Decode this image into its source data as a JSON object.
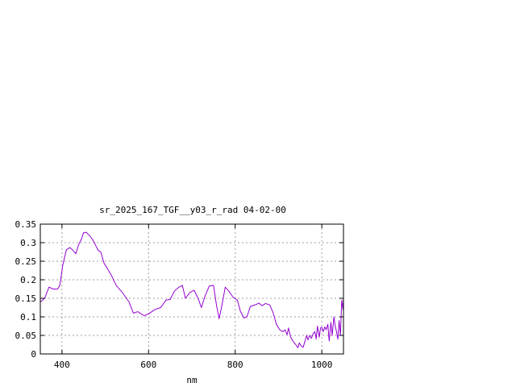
{
  "chart_data": {
    "type": "line",
    "title": "sr_2025_167_TGF__y03_r_rad 04-02-00",
    "xlabel": "nm",
    "ylabel": "",
    "xlim": [
      350,
      1050
    ],
    "ylim": [
      0,
      0.35
    ],
    "x_ticks": [
      400,
      600,
      800,
      1000
    ],
    "x_tick_labels": [
      "400",
      "600",
      "800",
      "1000"
    ],
    "y_ticks": [
      0,
      0.05,
      0.1,
      0.15,
      0.2,
      0.25,
      0.3,
      0.35
    ],
    "y_tick_labels": [
      "0",
      "0.05",
      "0.1",
      "0.15",
      "0.2",
      "0.25",
      "0.3",
      "0.35"
    ],
    "grid": true,
    "series": [
      {
        "color": "#9400d3",
        "points": [
          [
            350,
            0.14
          ],
          [
            360,
            0.15
          ],
          [
            370,
            0.18
          ],
          [
            380,
            0.175
          ],
          [
            390,
            0.175
          ],
          [
            395,
            0.185
          ],
          [
            402,
            0.24
          ],
          [
            410,
            0.28
          ],
          [
            418,
            0.287
          ],
          [
            425,
            0.28
          ],
          [
            432,
            0.27
          ],
          [
            438,
            0.293
          ],
          [
            445,
            0.31
          ],
          [
            450,
            0.327
          ],
          [
            456,
            0.328
          ],
          [
            463,
            0.32
          ],
          [
            470,
            0.31
          ],
          [
            477,
            0.295
          ],
          [
            483,
            0.28
          ],
          [
            490,
            0.274
          ],
          [
            497,
            0.245
          ],
          [
            505,
            0.23
          ],
          [
            515,
            0.21
          ],
          [
            525,
            0.185
          ],
          [
            540,
            0.165
          ],
          [
            555,
            0.14
          ],
          [
            565,
            0.11
          ],
          [
            575,
            0.114
          ],
          [
            590,
            0.103
          ],
          [
            600,
            0.108
          ],
          [
            615,
            0.12
          ],
          [
            628,
            0.125
          ],
          [
            640,
            0.145
          ],
          [
            650,
            0.147
          ],
          [
            660,
            0.17
          ],
          [
            670,
            0.18
          ],
          [
            678,
            0.185
          ],
          [
            685,
            0.15
          ],
          [
            695,
            0.165
          ],
          [
            705,
            0.172
          ],
          [
            715,
            0.148
          ],
          [
            722,
            0.125
          ],
          [
            730,
            0.155
          ],
          [
            740,
            0.183
          ],
          [
            750,
            0.185
          ],
          [
            757,
            0.13
          ],
          [
            763,
            0.095
          ],
          [
            770,
            0.135
          ],
          [
            777,
            0.18
          ],
          [
            785,
            0.17
          ],
          [
            795,
            0.153
          ],
          [
            805,
            0.145
          ],
          [
            812,
            0.115
          ],
          [
            820,
            0.097
          ],
          [
            827,
            0.1
          ],
          [
            835,
            0.128
          ],
          [
            845,
            0.132
          ],
          [
            855,
            0.137
          ],
          [
            862,
            0.13
          ],
          [
            870,
            0.136
          ],
          [
            880,
            0.132
          ],
          [
            888,
            0.11
          ],
          [
            895,
            0.08
          ],
          [
            903,
            0.065
          ],
          [
            910,
            0.06
          ],
          [
            915,
            0.065
          ],
          [
            920,
            0.052
          ],
          [
            923,
            0.07
          ],
          [
            928,
            0.045
          ],
          [
            935,
            0.032
          ],
          [
            940,
            0.025
          ],
          [
            945,
            0.017
          ],
          [
            948,
            0.03
          ],
          [
            952,
            0.022
          ],
          [
            957,
            0.018
          ],
          [
            960,
            0.03
          ],
          [
            965,
            0.05
          ],
          [
            968,
            0.038
          ],
          [
            972,
            0.05
          ],
          [
            976,
            0.042
          ],
          [
            980,
            0.055
          ],
          [
            984,
            0.06
          ],
          [
            987,
            0.04
          ],
          [
            990,
            0.075
          ],
          [
            994,
            0.045
          ],
          [
            997,
            0.07
          ],
          [
            1000,
            0.072
          ],
          [
            1003,
            0.06
          ],
          [
            1007,
            0.073
          ],
          [
            1010,
            0.065
          ],
          [
            1014,
            0.08
          ],
          [
            1017,
            0.035
          ],
          [
            1021,
            0.085
          ],
          [
            1024,
            0.05
          ],
          [
            1028,
            0.1
          ],
          [
            1031,
            0.075
          ],
          [
            1034,
            0.06
          ],
          [
            1037,
            0.04
          ],
          [
            1040,
            0.09
          ],
          [
            1043,
            0.05
          ],
          [
            1046,
            0.145
          ],
          [
            1049,
            0.12
          ],
          [
            1050,
            0.15
          ]
        ]
      }
    ]
  }
}
